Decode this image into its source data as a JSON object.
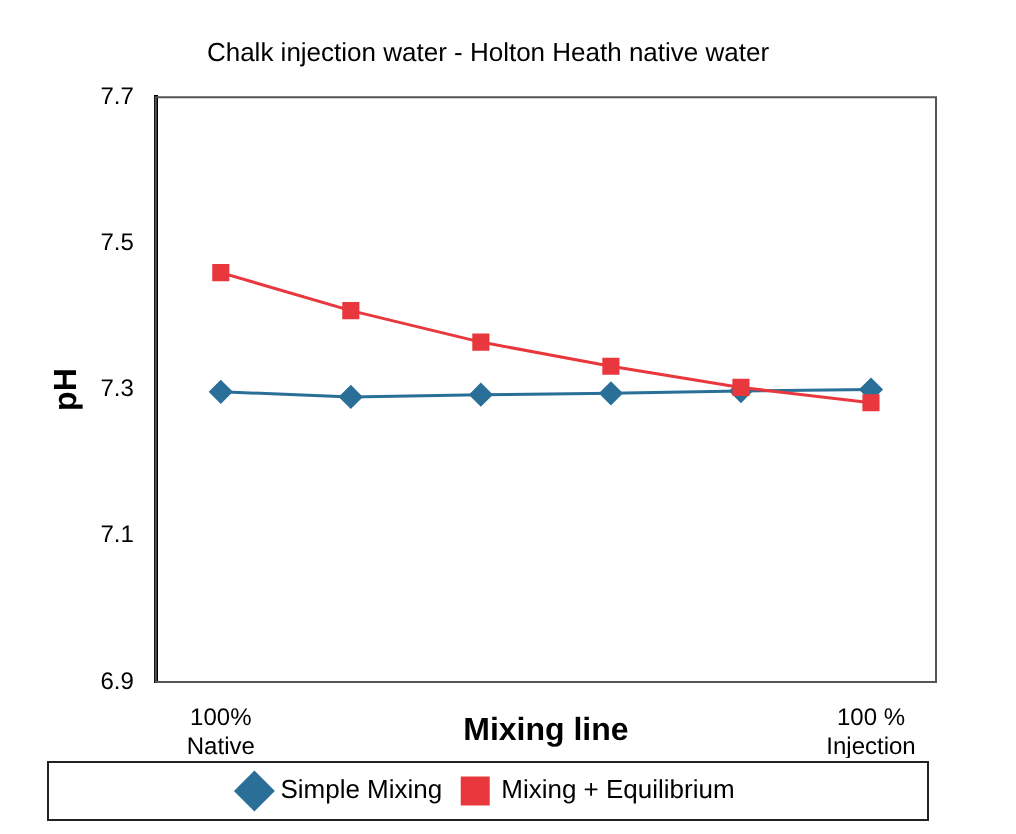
{
  "chart_data": {
    "type": "line",
    "title": "Chalk injection water - Holton Heath native water",
    "xlabel": "Mixing line",
    "ylabel": "pH",
    "categories": [
      "100%\nNative",
      null,
      null,
      null,
      null,
      "100 %\nInjection"
    ],
    "series": [
      {
        "name": "Simple Mixing",
        "color": "#2a6f97",
        "marker": "diamond",
        "values": [
          7.297,
          7.29,
          7.293,
          7.295,
          7.298,
          7.3
        ]
      },
      {
        "name": "Mixing + Equilibrium",
        "color": "#e8383d",
        "marker": "square",
        "values": [
          7.46,
          7.408,
          7.365,
          7.332,
          7.303,
          7.282
        ]
      }
    ],
    "ylim": [
      6.9,
      7.7
    ],
    "yticks": [
      6.9,
      7.1,
      7.3,
      7.5,
      7.7
    ],
    "grid": false,
    "legend": "bottom"
  }
}
